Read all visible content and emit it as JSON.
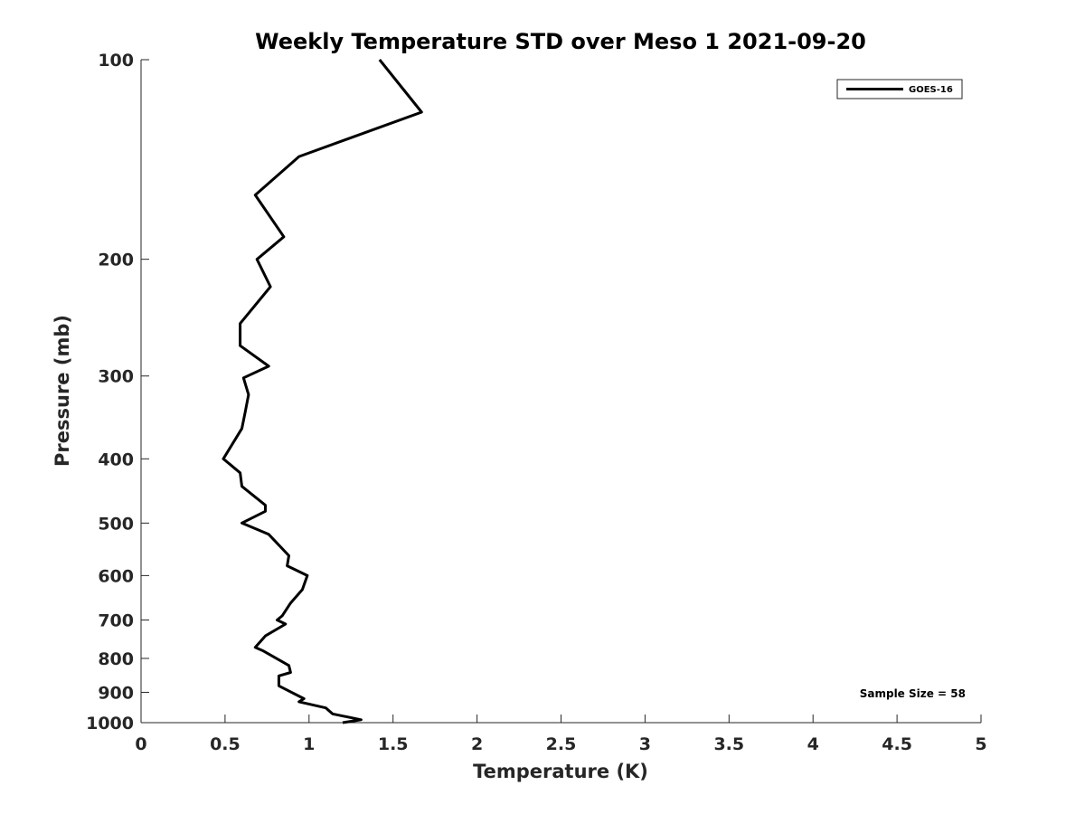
{
  "chart_data": {
    "type": "line",
    "title": "Weekly Temperature STD over Meso 1 2021-09-20",
    "xlabel": "Temperature (K)",
    "ylabel": "Pressure (mb)",
    "xlim": [
      0,
      5
    ],
    "ylim": [
      100,
      1000
    ],
    "y_scale": "log",
    "y_reversed": true,
    "grid": false,
    "legend_position": "top-right",
    "x_ticks": [
      "0",
      "0.5",
      "1",
      "1.5",
      "2",
      "2.5",
      "3",
      "3.5",
      "4",
      "4.5",
      "5"
    ],
    "y_ticks": [
      "100",
      "200",
      "300",
      "400",
      "500",
      "600",
      "700",
      "800",
      "900",
      "1000"
    ],
    "annotation": "Sample Size = 58",
    "series": [
      {
        "name": "GOES-16",
        "color": "#000000",
        "x": [
          1.42,
          1.67,
          0.94,
          0.68,
          0.85,
          0.69,
          0.77,
          0.59,
          0.59,
          0.76,
          0.61,
          0.64,
          0.62,
          0.6,
          0.49,
          0.59,
          0.6,
          0.74,
          0.74,
          0.6,
          0.76,
          0.88,
          0.87,
          0.99,
          0.96,
          0.89,
          0.84,
          0.81,
          0.86,
          0.74,
          0.68,
          0.73,
          0.88,
          0.89,
          0.82,
          0.82,
          0.97,
          0.94,
          1.1,
          1.14,
          1.31,
          1.2
        ],
        "y": [
          100,
          120,
          140,
          160,
          185,
          200,
          220,
          250,
          270,
          290,
          302,
          320,
          340,
          360,
          400,
          420,
          440,
          470,
          480,
          500,
          520,
          560,
          580,
          600,
          630,
          660,
          690,
          700,
          710,
          740,
          770,
          780,
          820,
          840,
          850,
          880,
          920,
          930,
          950,
          970,
          990,
          1000
        ]
      }
    ]
  }
}
